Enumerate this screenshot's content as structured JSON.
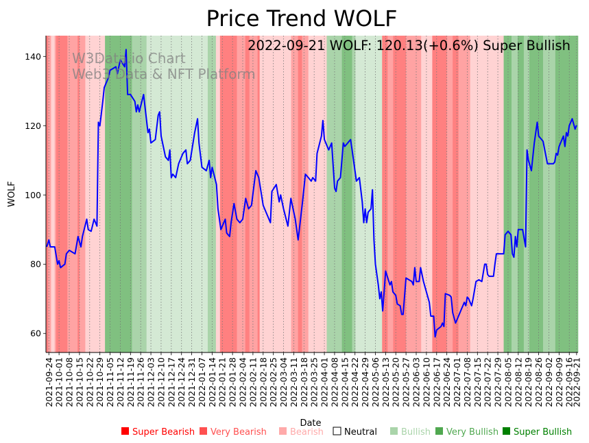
{
  "chart_data": {
    "type": "line",
    "title": "Price Trend WOLF",
    "xlabel": "Date",
    "ylabel": "WOLF",
    "annotation": "2022-09-21 WOLF: 120.13(+0.6%) Super Bullish",
    "watermark": [
      "W3Data.io Chart",
      "Web3 Data & NFT Platform"
    ],
    "x_unit": "days since 2021-09-24",
    "xlim": [
      -2,
      363
    ],
    "ylim": [
      54.5,
      146
    ],
    "grid": "vertical dotted at x ticks",
    "yticks": [
      60,
      80,
      100,
      120,
      140
    ],
    "xticks": [
      {
        "day": 0,
        "label": "2021-09-24"
      },
      {
        "day": 7,
        "label": "2021-10-01"
      },
      {
        "day": 14,
        "label": "2021-10-08"
      },
      {
        "day": 21,
        "label": "2021-10-15"
      },
      {
        "day": 28,
        "label": "2021-10-22"
      },
      {
        "day": 35,
        "label": "2021-10-29"
      },
      {
        "day": 42,
        "label": "2021-11-05"
      },
      {
        "day": 49,
        "label": "2021-11-12"
      },
      {
        "day": 56,
        "label": "2021-11-19"
      },
      {
        "day": 63,
        "label": "2021-11-26"
      },
      {
        "day": 70,
        "label": "2021-12-03"
      },
      {
        "day": 77,
        "label": "2021-12-10"
      },
      {
        "day": 84,
        "label": "2021-12-17"
      },
      {
        "day": 91,
        "label": "2021-12-24"
      },
      {
        "day": 98,
        "label": "2021-12-31"
      },
      {
        "day": 105,
        "label": "2022-01-07"
      },
      {
        "day": 112,
        "label": "2022-01-14"
      },
      {
        "day": 119,
        "label": "2022-01-21"
      },
      {
        "day": 126,
        "label": "2022-01-28"
      },
      {
        "day": 133,
        "label": "2022-02-04"
      },
      {
        "day": 140,
        "label": "2022-02-11"
      },
      {
        "day": 147,
        "label": "2022-02-18"
      },
      {
        "day": 154,
        "label": "2022-02-25"
      },
      {
        "day": 161,
        "label": "2022-03-04"
      },
      {
        "day": 168,
        "label": "2022-03-11"
      },
      {
        "day": 175,
        "label": "2022-03-18"
      },
      {
        "day": 182,
        "label": "2022-03-25"
      },
      {
        "day": 189,
        "label": "2022-04-01"
      },
      {
        "day": 196,
        "label": "2022-04-08"
      },
      {
        "day": 203,
        "label": "2022-04-15"
      },
      {
        "day": 210,
        "label": "2022-04-22"
      },
      {
        "day": 217,
        "label": "2022-04-29"
      },
      {
        "day": 224,
        "label": "2022-05-06"
      },
      {
        "day": 231,
        "label": "2022-05-13"
      },
      {
        "day": 238,
        "label": "2022-05-20"
      },
      {
        "day": 245,
        "label": "2022-05-27"
      },
      {
        "day": 252,
        "label": "2022-06-03"
      },
      {
        "day": 259,
        "label": "2022-06-10"
      },
      {
        "day": 266,
        "label": "2022-06-17"
      },
      {
        "day": 273,
        "label": "2022-06-24"
      },
      {
        "day": 280,
        "label": "2022-07-01"
      },
      {
        "day": 287,
        "label": "2022-07-08"
      },
      {
        "day": 294,
        "label": "2022-07-15"
      },
      {
        "day": 301,
        "label": "2022-07-22"
      },
      {
        "day": 308,
        "label": "2022-07-29"
      },
      {
        "day": 315,
        "label": "2022-08-05"
      },
      {
        "day": 322,
        "label": "2022-08-12"
      },
      {
        "day": 329,
        "label": "2022-08-19"
      },
      {
        "day": 336,
        "label": "2022-08-26"
      },
      {
        "day": 343,
        "label": "2022-09-02"
      },
      {
        "day": 350,
        "label": "2022-09-09"
      },
      {
        "day": 357,
        "label": "2022-09-16"
      },
      {
        "day": 362,
        "label": "2022-09-21"
      }
    ],
    "series": [
      {
        "name": "WOLF",
        "color": "#0000ff",
        "points": [
          [
            -1.5,
            85
          ],
          [
            0,
            87
          ],
          [
            1,
            85
          ],
          [
            4,
            85
          ],
          [
            6,
            80
          ],
          [
            7,
            81
          ],
          [
            8,
            79
          ],
          [
            11,
            80
          ],
          [
            12,
            83
          ],
          [
            14,
            84
          ],
          [
            18,
            83
          ],
          [
            20,
            88
          ],
          [
            22,
            85
          ],
          [
            23,
            88
          ],
          [
            26,
            93
          ],
          [
            27,
            90
          ],
          [
            29,
            89.5
          ],
          [
            31,
            93
          ],
          [
            33,
            91
          ],
          [
            34,
            121
          ],
          [
            35,
            120
          ],
          [
            37,
            127
          ],
          [
            38,
            131
          ],
          [
            41,
            134
          ],
          [
            42,
            136
          ],
          [
            46,
            137
          ],
          [
            47,
            135
          ],
          [
            49,
            139
          ],
          [
            52,
            137
          ],
          [
            53,
            142
          ],
          [
            54,
            129
          ],
          [
            56,
            129
          ],
          [
            59,
            127
          ],
          [
            60,
            124
          ],
          [
            61,
            126
          ],
          [
            62,
            124
          ],
          [
            65,
            129
          ],
          [
            68,
            118
          ],
          [
            69,
            119
          ],
          [
            70,
            115
          ],
          [
            73,
            116
          ],
          [
            75,
            123
          ],
          [
            76,
            124
          ],
          [
            77,
            117
          ],
          [
            80,
            111
          ],
          [
            82,
            110
          ],
          [
            83,
            113
          ],
          [
            84,
            105
          ],
          [
            85,
            106
          ],
          [
            87,
            105
          ],
          [
            89,
            109
          ],
          [
            92,
            112
          ],
          [
            94,
            113
          ],
          [
            95,
            109
          ],
          [
            97,
            110
          ],
          [
            100,
            118
          ],
          [
            102,
            122
          ],
          [
            103,
            115
          ],
          [
            105,
            108
          ],
          [
            108,
            107
          ],
          [
            110,
            110
          ],
          [
            111,
            105
          ],
          [
            112,
            108
          ],
          [
            115,
            103
          ],
          [
            116,
            96
          ],
          [
            118,
            90
          ],
          [
            121,
            93
          ],
          [
            122,
            89
          ],
          [
            124,
            88
          ],
          [
            125,
            92
          ],
          [
            127,
            97.5
          ],
          [
            129,
            93
          ],
          [
            131,
            92
          ],
          [
            133,
            93
          ],
          [
            135,
            99
          ],
          [
            137,
            96
          ],
          [
            139,
            97
          ],
          [
            142,
            107
          ],
          [
            144,
            105
          ],
          [
            147,
            97
          ],
          [
            148,
            96
          ],
          [
            152,
            92
          ],
          [
            153,
            101
          ],
          [
            156,
            103
          ],
          [
            158,
            98
          ],
          [
            159,
            100
          ],
          [
            161,
            96
          ],
          [
            164,
            91
          ],
          [
            166,
            99
          ],
          [
            169,
            93
          ],
          [
            171,
            87
          ],
          [
            174,
            98
          ],
          [
            176,
            106
          ],
          [
            178,
            105
          ],
          [
            180,
            104
          ],
          [
            181,
            105
          ],
          [
            183,
            104
          ],
          [
            184,
            112
          ],
          [
            187,
            117
          ],
          [
            188,
            121.5
          ],
          [
            189,
            116
          ],
          [
            191,
            114
          ],
          [
            192,
            113
          ],
          [
            194,
            115
          ],
          [
            196,
            102
          ],
          [
            197,
            101
          ],
          [
            198,
            104
          ],
          [
            200,
            105
          ],
          [
            202,
            115
          ],
          [
            203,
            114
          ],
          [
            205,
            115
          ],
          [
            207,
            116
          ],
          [
            208,
            113
          ],
          [
            211,
            104
          ],
          [
            213,
            105
          ],
          [
            215,
            98
          ],
          [
            216,
            92
          ],
          [
            217,
            96
          ],
          [
            218,
            92
          ],
          [
            219,
            95
          ],
          [
            221,
            96
          ],
          [
            222,
            101.5
          ],
          [
            223,
            87
          ],
          [
            224,
            80
          ],
          [
            226,
            74
          ],
          [
            227,
            70
          ],
          [
            228,
            72
          ],
          [
            229,
            66.5
          ],
          [
            230,
            72
          ],
          [
            231,
            78
          ],
          [
            234,
            74
          ],
          [
            235,
            75
          ],
          [
            236,
            72
          ],
          [
            238,
            71
          ],
          [
            239,
            68.5
          ],
          [
            241,
            68
          ],
          [
            242,
            65.5
          ],
          [
            243,
            65.5
          ],
          [
            245,
            76
          ],
          [
            249,
            75
          ],
          [
            250,
            74
          ],
          [
            251,
            79
          ],
          [
            252,
            75
          ],
          [
            254,
            75
          ],
          [
            255,
            79
          ],
          [
            257,
            75
          ],
          [
            261,
            69
          ],
          [
            262,
            65
          ],
          [
            264,
            65
          ],
          [
            265,
            59
          ],
          [
            266,
            61
          ],
          [
            269,
            62
          ],
          [
            270,
            63
          ],
          [
            271,
            62
          ],
          [
            272,
            71.5
          ],
          [
            275,
            71
          ],
          [
            276,
            70.5
          ],
          [
            277,
            66
          ],
          [
            279,
            63
          ],
          [
            281,
            65
          ],
          [
            283,
            67
          ],
          [
            285,
            69
          ],
          [
            286,
            68
          ],
          [
            287,
            70.5
          ],
          [
            288,
            70
          ],
          [
            290,
            68
          ],
          [
            291,
            70
          ],
          [
            293,
            75
          ],
          [
            295,
            75.5
          ],
          [
            297,
            75
          ],
          [
            299,
            80
          ],
          [
            300,
            80
          ],
          [
            301,
            77
          ],
          [
            302,
            76.5
          ],
          [
            305,
            76.5
          ],
          [
            306,
            80
          ],
          [
            307,
            83
          ],
          [
            310,
            83
          ],
          [
            312,
            83
          ],
          [
            313,
            88.5
          ],
          [
            315,
            89.5
          ],
          [
            317,
            88.5
          ],
          [
            318,
            83
          ],
          [
            319,
            82
          ],
          [
            320,
            88
          ],
          [
            321,
            85
          ],
          [
            322,
            90
          ],
          [
            325,
            90
          ],
          [
            327,
            85
          ],
          [
            328,
            113
          ],
          [
            329,
            110
          ],
          [
            331,
            107
          ],
          [
            333,
            115
          ],
          [
            335,
            121
          ],
          [
            336,
            117
          ],
          [
            339,
            115.5
          ],
          [
            342,
            109
          ],
          [
            346,
            109
          ],
          [
            347,
            109.5
          ],
          [
            348,
            112
          ],
          [
            349,
            111.5
          ],
          [
            350,
            114
          ],
          [
            353,
            117
          ],
          [
            354,
            114
          ],
          [
            355,
            118
          ],
          [
            356,
            117
          ],
          [
            357,
            120
          ],
          [
            359,
            122
          ],
          [
            361,
            119
          ],
          [
            362,
            120.13
          ]
        ]
      }
    ],
    "sentiment_bands": [
      [
        -2,
        -0.5,
        "SB"
      ],
      [
        -0.5,
        1.5,
        "VB"
      ],
      [
        1.5,
        4,
        "B"
      ],
      [
        4,
        5,
        "VB"
      ],
      [
        5,
        12.7,
        "SB"
      ],
      [
        12.7,
        19.7,
        "VB"
      ],
      [
        19.7,
        21,
        "SB"
      ],
      [
        21,
        25,
        "VB"
      ],
      [
        25,
        38.5,
        "B"
      ],
      [
        38.5,
        57,
        "SBu"
      ],
      [
        57,
        67,
        "VBu"
      ],
      [
        67,
        109,
        "Bu"
      ],
      [
        109,
        114.6,
        "VBu"
      ],
      [
        114.6,
        117.4,
        "B"
      ],
      [
        117.4,
        129,
        "SB"
      ],
      [
        129,
        134.7,
        "VB"
      ],
      [
        134.7,
        137.6,
        "SB"
      ],
      [
        137.6,
        143.2,
        "VB"
      ],
      [
        143.2,
        144.6,
        "SB"
      ],
      [
        144.6,
        166.2,
        "B"
      ],
      [
        166.2,
        170.9,
        "VB"
      ],
      [
        170.9,
        173.7,
        "SB"
      ],
      [
        173.7,
        178,
        "VB"
      ],
      [
        178,
        190.6,
        "B"
      ],
      [
        190.6,
        201,
        "VBu"
      ],
      [
        201,
        208,
        "SBu"
      ],
      [
        208,
        210.3,
        "VBu"
      ],
      [
        210.3,
        228.6,
        "Bu"
      ],
      [
        228.6,
        232.4,
        "SB"
      ],
      [
        232.4,
        236.2,
        "VB"
      ],
      [
        236.2,
        245,
        "SB"
      ],
      [
        245,
        255.4,
        "VB"
      ],
      [
        255.4,
        263,
        "B"
      ],
      [
        263,
        273,
        "SB"
      ],
      [
        273,
        277,
        "VB"
      ],
      [
        277,
        281,
        "SB"
      ],
      [
        281,
        289,
        "VB"
      ],
      [
        289,
        312,
        "B"
      ],
      [
        312,
        317.4,
        "SBu"
      ],
      [
        317.4,
        321.6,
        "VBu"
      ],
      [
        321.6,
        325.8,
        "SBu"
      ],
      [
        325.8,
        329.6,
        "VBu"
      ],
      [
        329.6,
        339,
        "SBu"
      ],
      [
        339,
        347.4,
        "VBu"
      ],
      [
        347.4,
        363,
        "SBu"
      ]
    ],
    "legend": {
      "placement": "bottom",
      "items": [
        {
          "key": "SB",
          "label": "Super Bearish",
          "color": "#ff0000",
          "band": "#ff8080"
        },
        {
          "key": "VB",
          "label": "Very Bearish",
          "color": "#ff5050",
          "band": "#ffa3a3"
        },
        {
          "key": "B",
          "label": "Bearish",
          "color": "#ffaaaa",
          "band": "#ffd3d3"
        },
        {
          "key": "N",
          "label": "Neutral",
          "color": "#ffffff",
          "band": "#ffffff"
        },
        {
          "key": "Bu",
          "label": "Bullish",
          "color": "#aad4aa",
          "band": "#d4e9d4"
        },
        {
          "key": "VBu",
          "label": "Very Bullish",
          "color": "#50a850",
          "band": "#aad4aa"
        },
        {
          "key": "SBu",
          "label": "Super Bullish",
          "color": "#008000",
          "band": "#80c080"
        }
      ]
    }
  }
}
